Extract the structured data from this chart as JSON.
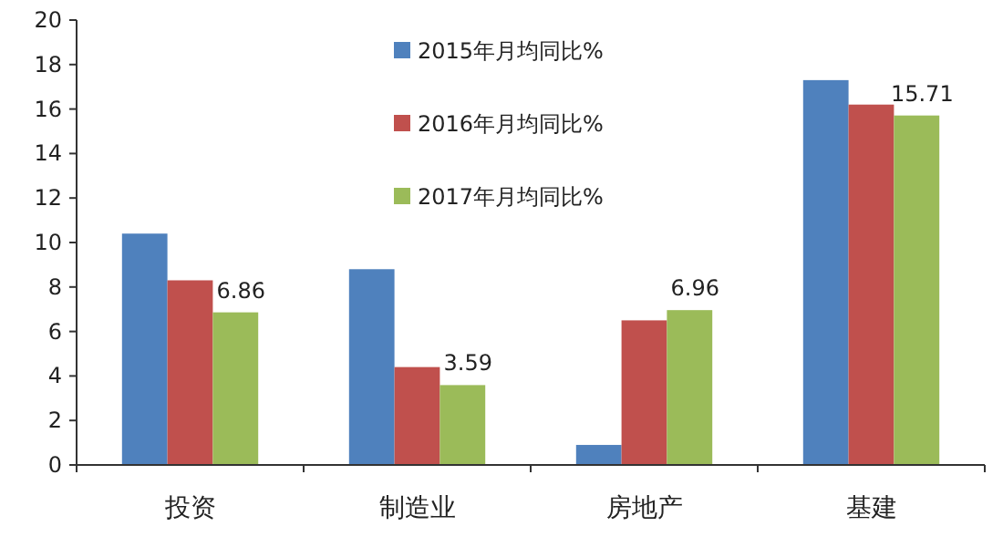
{
  "chart_data": {
    "type": "bar",
    "categories": [
      "投资",
      "制造业",
      "房地产",
      "基建"
    ],
    "series": [
      {
        "name": "2015年月均同比%",
        "color": "#4f81bd",
        "values": [
          10.4,
          8.8,
          0.9,
          17.3
        ]
      },
      {
        "name": "2016年月均同比%",
        "color": "#c0504d",
        "values": [
          8.3,
          4.4,
          6.5,
          16.2
        ]
      },
      {
        "name": "2017年月均同比%",
        "color": "#9bbb59",
        "values": [
          6.86,
          3.59,
          6.96,
          15.71
        ],
        "value_labels": [
          "6.86",
          "3.59",
          "6.96",
          "15.71"
        ]
      }
    ],
    "ylim": [
      0,
      20
    ],
    "yticks": [
      0,
      2,
      4,
      6,
      8,
      10,
      12,
      14,
      16,
      18,
      20
    ],
    "grid": false,
    "legend": "top"
  }
}
